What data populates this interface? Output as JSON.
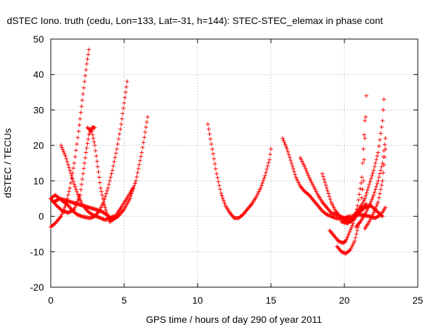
{
  "chart_data": {
    "type": "scatter",
    "title": "dSTEC Iono. truth (cedu, Lon=133, Lat=-31, h=144): STEC-STEC_elemax in phase cont",
    "xlabel": "GPS time / hours of day 290 of year 2011",
    "ylabel": "dSTEC  / TECUs",
    "xlim": [
      0,
      25
    ],
    "ylim": [
      -20,
      50
    ],
    "xticks": [
      0,
      5,
      10,
      15,
      20,
      25
    ],
    "yticks": [
      -20,
      -10,
      0,
      10,
      20,
      30,
      40,
      50
    ],
    "grid": true,
    "marker": "+",
    "series_color": "#ff0000",
    "series": [
      {
        "x": [
          0.0,
          0.3,
          0.7,
          1.0,
          1.3,
          1.6,
          1.9,
          2.1,
          2.3,
          2.45,
          2.6
        ],
        "y": [
          -3,
          -2,
          0,
          3,
          8,
          15,
          24,
          31,
          38,
          43,
          47
        ]
      },
      {
        "x": [
          0.0,
          0.3,
          0.6,
          0.9,
          1.2,
          1.5,
          1.8,
          2.1,
          2.4,
          2.7,
          3.0,
          3.3,
          3.6,
          3.9,
          4.2,
          4.5,
          4.8,
          5.0,
          5.2
        ],
        "y": [
          5,
          6,
          5,
          4,
          3,
          1.5,
          0.5,
          0,
          -0.3,
          -0.5,
          0,
          1.5,
          4,
          8,
          13,
          19,
          26,
          32,
          38
        ]
      },
      {
        "x": [
          0.7,
          1.0,
          1.3,
          1.6,
          1.9,
          2.2,
          2.5,
          2.8,
          3.1,
          3.4,
          3.7,
          4.0,
          4.3
        ],
        "y": [
          20,
          17,
          13,
          9,
          5.5,
          3,
          1.5,
          0.5,
          0,
          -0.5,
          -1,
          -0.5,
          0
        ]
      },
      {
        "x": [
          0.0,
          0.4,
          0.8,
          1.2,
          1.6,
          2.0,
          2.2,
          2.4,
          2.6,
          2.8,
          3.0
        ],
        "y": [
          5,
          3,
          1.5,
          1,
          2,
          6,
          12,
          18,
          23,
          25,
          25
        ]
      },
      {
        "x": [
          2.5,
          2.8,
          3.0,
          3.2,
          3.4,
          3.6,
          3.8,
          4.1
        ],
        "y": [
          25,
          24,
          20,
          14,
          8,
          4,
          1,
          -1.5
        ]
      },
      {
        "x": [
          0.2,
          0.6,
          1.0,
          1.4,
          1.8,
          2.2,
          2.6,
          3.0,
          3.4,
          3.8,
          4.2,
          4.6,
          5.0,
          5.4,
          5.8,
          6.2,
          6.6
        ],
        "y": [
          4,
          5,
          4.5,
          4,
          3.5,
          3,
          2.5,
          2,
          1.5,
          0.5,
          -1,
          0,
          2,
          5,
          10,
          18,
          28
        ]
      },
      {
        "x": [
          4.0,
          4.4,
          4.8,
          5.1,
          5.4,
          5.6
        ],
        "y": [
          -1.5,
          0,
          2.5,
          4.5,
          6.5,
          8
        ]
      },
      {
        "x": [
          10.7,
          11.0,
          11.3,
          11.6,
          11.9,
          12.2,
          12.5,
          12.8,
          13.1,
          13.4,
          13.7,
          14.0,
          14.3,
          14.6,
          14.9,
          15.0
        ],
        "y": [
          26,
          19,
          12,
          6.5,
          3,
          1,
          -0.5,
          -0.5,
          0.5,
          2,
          3.5,
          5.5,
          8,
          11.5,
          16,
          19
        ]
      },
      {
        "x": [
          15.8,
          16.1,
          16.4,
          16.7,
          17.0,
          17.3,
          17.6,
          17.9,
          18.2,
          18.5,
          18.8,
          19.1,
          19.4,
          19.7,
          20.0,
          20.4
        ],
        "y": [
          22,
          19,
          15,
          11,
          8.5,
          7,
          6,
          4.5,
          3,
          1.5,
          0.5,
          0,
          -0.5,
          -0.7,
          -0.5,
          0
        ]
      },
      {
        "x": [
          17.0,
          17.3,
          17.6,
          17.9,
          18.2,
          18.5,
          18.8,
          19.1,
          19.4,
          19.7,
          20.0,
          20.3
        ],
        "y": [
          16.5,
          14,
          11,
          8.5,
          6,
          4,
          2.5,
          1,
          0.5,
          0,
          -0.5,
          -0.5
        ]
      },
      {
        "x": [
          18.5,
          18.8,
          19.1,
          19.4,
          19.7,
          20.0,
          20.3,
          20.6,
          20.9,
          21.2,
          21.5
        ],
        "y": [
          12,
          8,
          4,
          1.5,
          0,
          -1,
          -1.5,
          -1,
          0.5,
          2,
          3.5
        ]
      },
      {
        "x": [
          19.0,
          19.3,
          19.6,
          19.9,
          20.1,
          20.3,
          20.6,
          20.9,
          21.2,
          21.4
        ],
        "y": [
          -4,
          -5.5,
          -7,
          -7.5,
          -7,
          -5,
          -2,
          3,
          11,
          27
        ]
      },
      {
        "x": [
          19.5,
          19.8,
          20.1,
          20.4,
          20.7,
          21.0,
          21.3,
          21.5
        ],
        "y": [
          -8.5,
          -10,
          -10.5,
          -9.5,
          -7,
          -2,
          10,
          34
        ]
      },
      {
        "x": [
          20.2,
          20.5,
          20.8,
          21.1,
          21.4,
          21.7,
          22.0,
          22.3,
          22.6,
          22.7
        ],
        "y": [
          -1.5,
          -0.5,
          1,
          2.5,
          5,
          9,
          13,
          18,
          27,
          33
        ]
      },
      {
        "x": [
          20.8,
          21.1,
          21.4,
          21.7,
          22.0,
          22.3,
          22.6,
          22.8
        ],
        "y": [
          -3,
          -1.5,
          0.5,
          3,
          6,
          10,
          15,
          22
        ]
      },
      {
        "x": [
          21.4,
          21.7,
          22.0,
          22.3,
          22.6,
          22.8
        ],
        "y": [
          -3.5,
          -1.5,
          1,
          4,
          10,
          19
        ]
      },
      {
        "x": [
          20.5,
          20.9,
          21.3,
          21.7,
          22.1,
          22.5,
          22.8
        ],
        "y": [
          0,
          0.5,
          0.3,
          0,
          -0.5,
          0.5,
          2.5
        ]
      },
      {
        "x": [
          19.8,
          20.2,
          20.6,
          21.0,
          21.4,
          21.8,
          22.2,
          22.6
        ],
        "y": [
          -1.5,
          -2,
          -1,
          1,
          2.5,
          3,
          1.5,
          0
        ]
      }
    ]
  }
}
